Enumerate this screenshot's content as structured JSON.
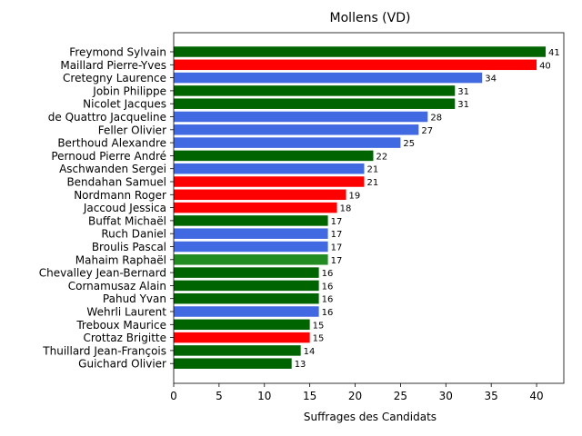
{
  "chart_data": {
    "type": "bar",
    "orientation": "horizontal",
    "title": "Mollens (VD)",
    "xlabel": "Suffrages des Candidats",
    "ylabel": "",
    "xlim": [
      0,
      43
    ],
    "xticks": [
      0,
      5,
      10,
      15,
      20,
      25,
      30,
      35,
      40
    ],
    "grid": false,
    "colors": {
      "dark_green": "#006400",
      "red": "#ff0000",
      "blue": "#4169e1",
      "forest_green": "#228b22"
    },
    "bars": [
      {
        "label": "Freymond Sylvain",
        "value": 41,
        "color": "#006400"
      },
      {
        "label": "Maillard Pierre-Yves",
        "value": 40,
        "color": "#ff0000"
      },
      {
        "label": "Cretegny Laurence",
        "value": 34,
        "color": "#4169e1"
      },
      {
        "label": "Jobin Philippe",
        "value": 31,
        "color": "#006400"
      },
      {
        "label": "Nicolet Jacques",
        "value": 31,
        "color": "#006400"
      },
      {
        "label": "de Quattro Jacqueline",
        "value": 28,
        "color": "#4169e1"
      },
      {
        "label": "Feller Olivier",
        "value": 27,
        "color": "#4169e1"
      },
      {
        "label": "Berthoud Alexandre",
        "value": 25,
        "color": "#4169e1"
      },
      {
        "label": "Pernoud Pierre André",
        "value": 22,
        "color": "#006400"
      },
      {
        "label": "Aschwanden Sergei",
        "value": 21,
        "color": "#4169e1"
      },
      {
        "label": "Bendahan Samuel",
        "value": 21,
        "color": "#ff0000"
      },
      {
        "label": "Nordmann Roger",
        "value": 19,
        "color": "#ff0000"
      },
      {
        "label": "Jaccoud Jessica",
        "value": 18,
        "color": "#ff0000"
      },
      {
        "label": "Buffat Michaël",
        "value": 17,
        "color": "#006400"
      },
      {
        "label": "Ruch Daniel",
        "value": 17,
        "color": "#4169e1"
      },
      {
        "label": "Broulis Pascal",
        "value": 17,
        "color": "#4169e1"
      },
      {
        "label": "Mahaim Raphaël",
        "value": 17,
        "color": "#228b22"
      },
      {
        "label": "Chevalley Jean-Bernard",
        "value": 16,
        "color": "#006400"
      },
      {
        "label": "Cornamusaz Alain",
        "value": 16,
        "color": "#006400"
      },
      {
        "label": "Pahud Yvan",
        "value": 16,
        "color": "#006400"
      },
      {
        "label": "Wehrli Laurent",
        "value": 16,
        "color": "#4169e1"
      },
      {
        "label": "Treboux Maurice",
        "value": 15,
        "color": "#006400"
      },
      {
        "label": "Crottaz Brigitte",
        "value": 15,
        "color": "#ff0000"
      },
      {
        "label": "Thuillard Jean-François",
        "value": 14,
        "color": "#006400"
      },
      {
        "label": "Guichard Olivier",
        "value": 13,
        "color": "#006400"
      }
    ]
  }
}
